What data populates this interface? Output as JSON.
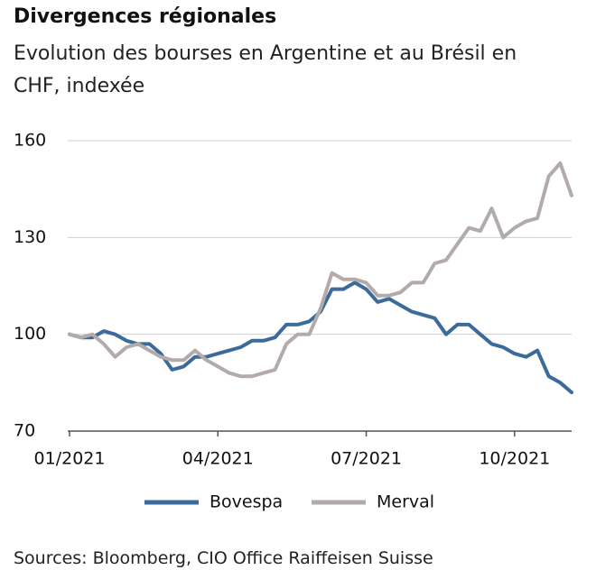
{
  "chart_data": {
    "type": "line",
    "title": "Divergences régionales",
    "subtitle": "Evolution des bourses en Argentine et au Brésil en CHF, indexée",
    "source": "Sources: Bloomberg, CIO Office Raiffeisen Suisse",
    "categories": [
      "01/2021",
      null,
      null,
      null,
      null,
      null,
      null,
      null,
      null,
      null,
      null,
      null,
      null,
      "04/2021",
      null,
      null,
      null,
      null,
      null,
      null,
      null,
      null,
      null,
      null,
      null,
      null,
      "07/2021",
      null,
      null,
      null,
      null,
      null,
      null,
      null,
      null,
      null,
      null,
      null,
      null,
      "10/2021",
      null,
      null,
      null,
      null,
      null
    ],
    "series": [
      {
        "name": "Bovespa",
        "color": "#3b6b9b",
        "values": [
          100,
          99,
          99,
          101,
          100,
          98,
          97,
          97,
          94,
          89,
          90,
          93,
          93,
          94,
          95,
          96,
          98,
          98,
          99,
          103,
          103,
          104,
          107,
          114,
          114,
          116,
          114,
          110,
          111,
          109,
          107,
          106,
          105,
          100,
          103,
          103,
          100,
          97,
          96,
          94,
          93,
          95,
          87,
          85,
          82
        ]
      },
      {
        "name": "Merval",
        "color": "#b3abaa",
        "values": [
          100,
          99,
          100,
          97,
          93,
          96,
          97,
          95,
          93,
          92,
          92,
          95,
          92,
          90,
          88,
          87,
          87,
          88,
          89,
          97,
          100,
          100,
          108,
          119,
          117,
          117,
          116,
          112,
          112,
          113,
          116,
          116,
          122,
          123,
          128,
          133,
          132,
          139,
          130,
          133,
          135,
          136,
          149,
          153,
          143
        ]
      }
    ],
    "ylim": [
      70,
      160
    ],
    "yticks": [
      70,
      100,
      130,
      160
    ],
    "grid": true,
    "legend": "bottom"
  }
}
